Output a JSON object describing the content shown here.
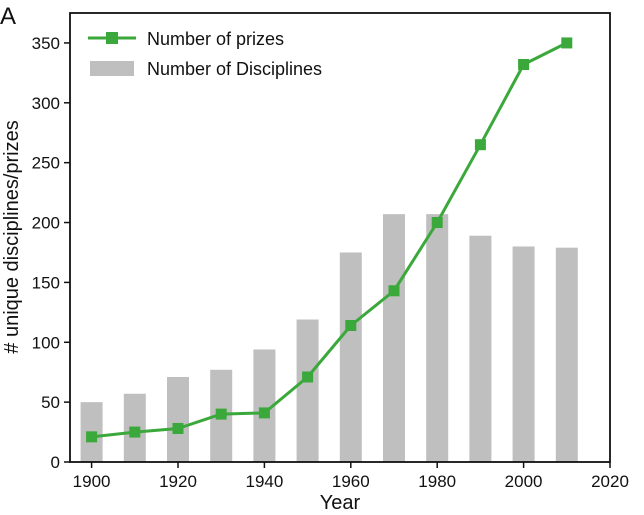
{
  "panel_label": "A",
  "chart_data": {
    "type": "bar",
    "x": [
      1900,
      1910,
      1920,
      1930,
      1940,
      1950,
      1960,
      1970,
      1980,
      1990,
      2000,
      2010
    ],
    "series": [
      {
        "name": "Number of Disciplines",
        "type": "bar",
        "color": "#bfbfbf",
        "values": [
          50,
          57,
          71,
          77,
          94,
          119,
          175,
          207,
          207,
          189,
          180,
          179
        ]
      },
      {
        "name": "Number of prizes",
        "type": "line",
        "marker": "square",
        "color": "#3aa83a",
        "values": [
          21,
          25,
          28,
          40,
          41,
          71,
          114,
          143,
          200,
          265,
          332,
          350
        ]
      }
    ],
    "xlabel": "Year",
    "ylabel": "# unique disciplines/prizes",
    "xlim": [
      1895,
      2020
    ],
    "ylim": [
      0,
      375
    ],
    "xticks": [
      "1900",
      "1920",
      "1940",
      "1960",
      "1980",
      "2000",
      "2020"
    ],
    "yticks": [
      "0",
      "50",
      "100",
      "150",
      "200",
      "250",
      "300",
      "350"
    ],
    "grid": false,
    "legend_position": "top-left"
  }
}
